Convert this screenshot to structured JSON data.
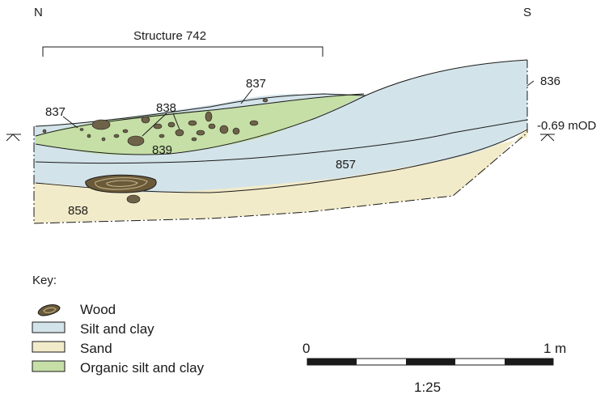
{
  "orientation": {
    "north": "N",
    "south": "S"
  },
  "structure_label": "Structure 742",
  "contexts": {
    "c837_left": "837",
    "c837_top": "837",
    "c838": "838",
    "c839": "839",
    "c836": "836",
    "c857": "857",
    "c858": "858"
  },
  "datum": "-0.69 mOD",
  "key": {
    "title": "Key:",
    "items": [
      {
        "label": "Wood",
        "color": "#6b5a3a"
      },
      {
        "label": "Silt and clay",
        "color": "#d3e3ea"
      },
      {
        "label": "Sand",
        "color": "#f2ebc9"
      },
      {
        "label": "Organic silt and clay",
        "color": "#c5dfa6"
      }
    ]
  },
  "scale": {
    "start": "0",
    "end": "1 m",
    "ratio": "1:25"
  },
  "colors": {
    "silt": "#d3e3ea",
    "sand": "#f2ebc9",
    "organic": "#c5dfa6",
    "wood": "#6b5a3a",
    "stone": "#6e6248"
  }
}
